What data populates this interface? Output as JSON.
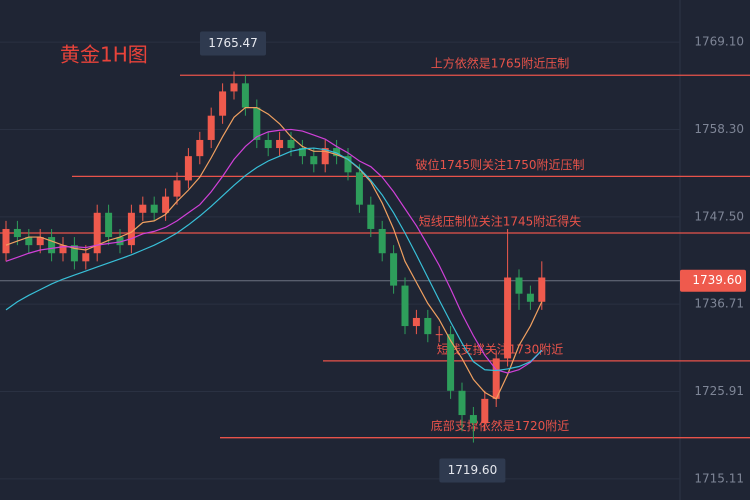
{
  "chart_data": {
    "type": "candlestick",
    "title": "黄金1H图",
    "ylim": [
      1712.5,
      1774.3
    ],
    "yticks": [
      {
        "value": 1715.11,
        "label": "1715.11"
      },
      {
        "value": 1725.91,
        "label": "1725.91"
      },
      {
        "value": 1736.71,
        "label": "1736.71"
      },
      {
        "value": 1747.5,
        "label": "1747.50"
      },
      {
        "value": 1758.3,
        "label": "1758.30"
      },
      {
        "value": 1769.1,
        "label": "1769.10"
      }
    ],
    "grid": true,
    "up_color": "#ef5a4d",
    "down_color": "#2e9e5b",
    "open": [
      1743,
      1746,
      1745,
      1744,
      1745,
      1743,
      1744,
      1742,
      1743,
      1748,
      1745,
      1744,
      1748,
      1749,
      1748,
      1750,
      1752,
      1755,
      1757,
      1760,
      1763,
      1764,
      1761,
      1757,
      1756,
      1757,
      1756,
      1755,
      1754,
      1756,
      1755,
      1753,
      1749,
      1746,
      1743,
      1739,
      1734,
      1735,
      1733,
      1733,
      1726,
      1723,
      1722,
      1725,
      1730,
      1740,
      1738,
      1737
    ],
    "high": [
      1747,
      1747,
      1746,
      1746,
      1746,
      1745,
      1745,
      1744,
      1749,
      1749,
      1746,
      1749,
      1750,
      1750,
      1751,
      1753,
      1756,
      1758,
      1761,
      1764,
      1765.47,
      1765,
      1762,
      1758,
      1758,
      1758,
      1757,
      1756,
      1757,
      1757,
      1756,
      1754,
      1750,
      1747,
      1744,
      1740,
      1736,
      1736,
      1734,
      1734,
      1727,
      1724,
      1726,
      1731,
      1746,
      1741,
      1739,
      1742
    ],
    "low": [
      1742,
      1744,
      1743,
      1743,
      1742,
      1742,
      1741,
      1741,
      1742,
      1744,
      1743,
      1743,
      1747,
      1747,
      1747,
      1749,
      1751,
      1754,
      1756,
      1759,
      1762,
      1760,
      1756,
      1755,
      1755,
      1755,
      1754,
      1753,
      1753,
      1754,
      1752,
      1748,
      1745,
      1742,
      1738,
      1733,
      1733,
      1732,
      1732,
      1725,
      1721,
      1719.6,
      1721,
      1724,
      1729,
      1736,
      1736,
      1736
    ],
    "close": [
      1746,
      1745,
      1744,
      1745,
      1743,
      1744,
      1742,
      1743,
      1748,
      1745,
      1744,
      1748,
      1749,
      1748,
      1750,
      1752,
      1755,
      1757,
      1760,
      1763,
      1764,
      1761,
      1757,
      1756,
      1757,
      1756,
      1755,
      1754,
      1756,
      1755,
      1753,
      1749,
      1746,
      1743,
      1739,
      1734,
      1735,
      1733,
      1733,
      1726,
      1723,
      1722,
      1725,
      1730,
      1740,
      1738,
      1737,
      1740
    ],
    "moving_averages": [
      {
        "color": "#f0a060",
        "values": [
          1744,
          1744.5,
          1745,
          1745,
          1744.5,
          1744,
          1743.6,
          1743.4,
          1744,
          1744.6,
          1745,
          1745.6,
          1746.8,
          1747,
          1747.8,
          1749.4,
          1750.8,
          1752.4,
          1754.8,
          1757.4,
          1759.8,
          1761,
          1761,
          1760.2,
          1759,
          1757.4,
          1756.2,
          1755.6,
          1755.6,
          1755.2,
          1754.6,
          1753.4,
          1751.8,
          1749.2,
          1746,
          1742,
          1739.4,
          1736.8,
          1734.8,
          1732.2,
          1730,
          1727.4,
          1725.8,
          1725,
          1728,
          1731.6,
          1734,
          1737
        ]
      },
      {
        "color": "#d040d8",
        "values": [
          1742,
          1742.5,
          1743,
          1743.4,
          1743.6,
          1743.8,
          1743.8,
          1743.7,
          1744,
          1744.2,
          1744.4,
          1744.8,
          1745.4,
          1745.7,
          1746.2,
          1747,
          1748,
          1749,
          1750.6,
          1752.5,
          1754.6,
          1756.2,
          1757.4,
          1758,
          1758.2,
          1758.3,
          1758.1,
          1757.6,
          1757.1,
          1756.2,
          1755.4,
          1754.4,
          1753.7,
          1752.4,
          1750.6,
          1748.5,
          1746.4,
          1744,
          1741.5,
          1738.6,
          1735.5,
          1732.8,
          1730.4,
          1728.6,
          1728.2,
          1728.6,
          1729.5,
          1731
        ]
      },
      {
        "color": "#38c0d8",
        "values": [
          1736,
          1737,
          1737.8,
          1738.5,
          1739.2,
          1739.8,
          1740.3,
          1740.8,
          1741.3,
          1741.8,
          1742.3,
          1742.8,
          1743.4,
          1744,
          1744.7,
          1745.5,
          1746.5,
          1747.6,
          1748.8,
          1750.1,
          1751.4,
          1752.6,
          1753.6,
          1754.4,
          1755,
          1755.6,
          1755.9,
          1756,
          1755.8,
          1755.4,
          1754.6,
          1753.5,
          1752,
          1750.2,
          1748,
          1745.5,
          1742.8,
          1740,
          1737.2,
          1734.5,
          1731.9,
          1729.6,
          1728.6,
          1728.5,
          1728.7,
          1729,
          1729.6,
          1731
        ]
      }
    ],
    "levels": [
      {
        "value": 1765,
        "label": "上方依然是1765附近压制"
      },
      {
        "value": 1752.5,
        "label": "破位1745则关注1750附近压制"
      },
      {
        "value": 1745.5,
        "label": "短线压制位关注1745附近得失"
      },
      {
        "value": 1729.7,
        "label": "短线支撑关注1730附近"
      },
      {
        "value": 1720.2,
        "label": "底部支撑依然是1720附近"
      }
    ],
    "level_color": "#e8534a",
    "current_price": {
      "value": 1739.6,
      "label": "1739.60"
    },
    "high_marker": {
      "value": 1765.47,
      "label": "1765.47"
    },
    "low_marker": {
      "value": 1719.6,
      "label": "1719.60"
    }
  }
}
